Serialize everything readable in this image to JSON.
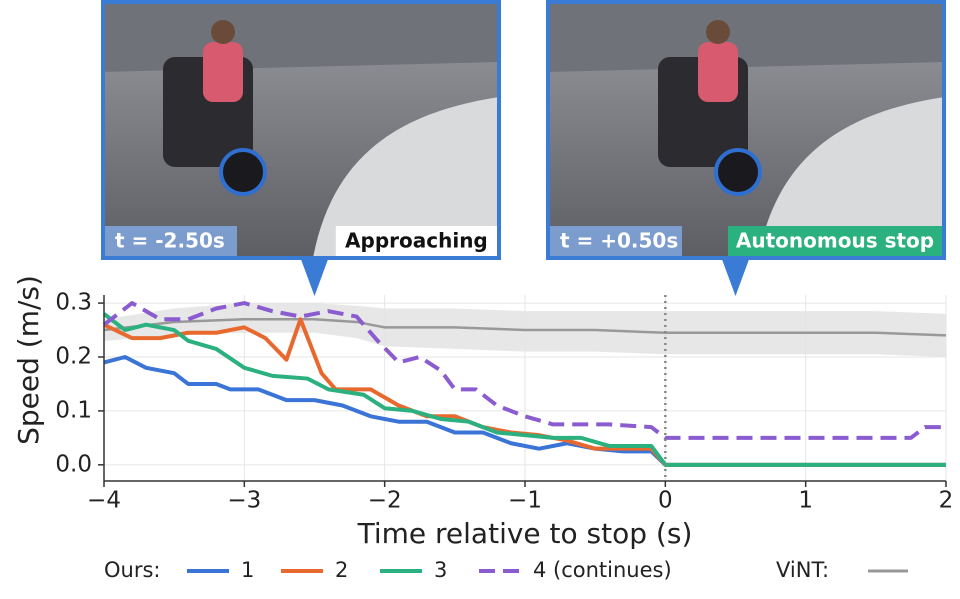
{
  "chart_data": {
    "type": "line",
    "xlabel": "Time relative to stop (s)",
    "ylabel": "Speed (m/s)",
    "xlim": [
      -4,
      2
    ],
    "ylim": [
      -0.03,
      0.315
    ],
    "xticks": [
      {
        "value": -4,
        "label": "−4"
      },
      {
        "value": -3,
        "label": "−3"
      },
      {
        "value": -2,
        "label": "−2"
      },
      {
        "value": -1,
        "label": "−1"
      },
      0,
      1,
      2
    ],
    "yticks": [
      {
        "value": 0,
        "label": "0.0"
      },
      0.1,
      0.2,
      0.3
    ],
    "grid": true,
    "vline": 0,
    "legend_title": "Ours:",
    "series": [
      {
        "name": "1",
        "color": "#3a74d6",
        "dash": false,
        "x": [
          -4,
          -3.85,
          -3.7,
          -3.5,
          -3.4,
          -3.2,
          -3.1,
          -2.9,
          -2.7,
          -2.5,
          -2.3,
          -2.1,
          -1.9,
          -1.7,
          -1.5,
          -1.3,
          -1.1,
          -0.9,
          -0.7,
          -0.5,
          -0.3,
          -0.1,
          0,
          2
        ],
        "values": [
          0.19,
          0.2,
          0.18,
          0.17,
          0.15,
          0.15,
          0.14,
          0.14,
          0.12,
          0.12,
          0.11,
          0.09,
          0.08,
          0.08,
          0.06,
          0.06,
          0.04,
          0.03,
          0.04,
          0.03,
          0.025,
          0.025,
          0,
          0
        ]
      },
      {
        "name": "2",
        "color": "#e8692e",
        "dash": false,
        "x": [
          -4,
          -3.8,
          -3.6,
          -3.4,
          -3.2,
          -3,
          -2.85,
          -2.7,
          -2.6,
          -2.45,
          -2.35,
          -2.1,
          -1.9,
          -1.7,
          -1.5,
          -1.3,
          -1.1,
          -0.9,
          -0.7,
          -0.5,
          -0.3,
          -0.1,
          0,
          2
        ],
        "values": [
          0.26,
          0.235,
          0.235,
          0.245,
          0.245,
          0.255,
          0.235,
          0.195,
          0.27,
          0.17,
          0.14,
          0.14,
          0.11,
          0.09,
          0.09,
          0.07,
          0.06,
          0.055,
          0.045,
          0.03,
          0.03,
          0.03,
          0,
          0
        ]
      },
      {
        "name": "3",
        "color": "#2bb07f",
        "dash": false,
        "x": [
          -4,
          -3.85,
          -3.7,
          -3.5,
          -3.4,
          -3.2,
          -3,
          -2.8,
          -2.55,
          -2.4,
          -2.15,
          -2,
          -1.8,
          -1.6,
          -1.4,
          -1.2,
          -1,
          -0.8,
          -0.6,
          -0.4,
          -0.1,
          0,
          2
        ],
        "values": [
          0.28,
          0.25,
          0.26,
          0.25,
          0.23,
          0.215,
          0.18,
          0.165,
          0.16,
          0.14,
          0.13,
          0.105,
          0.1,
          0.085,
          0.08,
          0.06,
          0.055,
          0.05,
          0.05,
          0.035,
          0.035,
          0,
          0
        ]
      },
      {
        "name": "4 (continues)",
        "color": "#8a5cd0",
        "dash": true,
        "x": [
          -4,
          -3.8,
          -3.6,
          -3.4,
          -3.2,
          -3,
          -2.8,
          -2.6,
          -2.4,
          -2.2,
          -2.05,
          -1.9,
          -1.75,
          -1.6,
          -1.5,
          -1.35,
          -1.2,
          -1,
          -0.8,
          -0.4,
          -0.1,
          0,
          1.75,
          1.85,
          2
        ],
        "values": [
          0.26,
          0.3,
          0.27,
          0.27,
          0.29,
          0.3,
          0.285,
          0.275,
          0.285,
          0.275,
          0.23,
          0.19,
          0.2,
          0.175,
          0.14,
          0.14,
          0.11,
          0.09,
          0.075,
          0.075,
          0.07,
          0.05,
          0.05,
          0.07,
          0.07
        ]
      },
      {
        "name": "ViNT:",
        "color": "#999999",
        "dash": false,
        "band_color": "#e3e3e3",
        "x": [
          -4,
          -3.5,
          -3,
          -2.5,
          -2.2,
          -2,
          -1.5,
          -1,
          -0.5,
          0,
          0.5,
          1,
          1.5,
          2
        ],
        "values": [
          0.25,
          0.265,
          0.27,
          0.27,
          0.265,
          0.255,
          0.255,
          0.25,
          0.25,
          0.245,
          0.245,
          0.245,
          0.245,
          0.24
        ],
        "lower": [
          0.23,
          0.24,
          0.245,
          0.245,
          0.235,
          0.22,
          0.215,
          0.21,
          0.21,
          0.205,
          0.205,
          0.205,
          0.205,
          0.2
        ],
        "upper": [
          0.27,
          0.29,
          0.3,
          0.3,
          0.295,
          0.29,
          0.29,
          0.285,
          0.285,
          0.285,
          0.285,
          0.285,
          0.285,
          0.28
        ]
      }
    ],
    "callouts": [
      {
        "at": -2.5,
        "time": "t = -2.50s",
        "label": "Approaching",
        "label_bg": "#ffffff",
        "label_color": "#111111"
      },
      {
        "at": 0.5,
        "time": "t = +0.50s",
        "label": "Autonomous stop",
        "label_bg": "#2bb07f",
        "label_color": "#ffffff"
      }
    ]
  }
}
